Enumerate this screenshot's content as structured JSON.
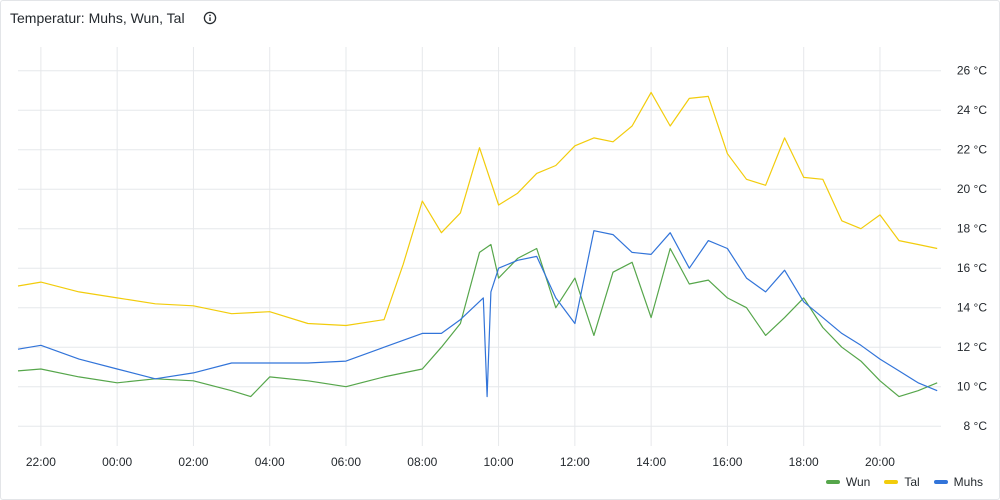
{
  "panel": {
    "title": "Temperatur: Muhs, Wun, Tal",
    "info_icon": "info-circle-icon"
  },
  "chart_data": {
    "type": "line",
    "xlabel": "",
    "ylabel": "",
    "x_tick_labels": [
      "22:00",
      "00:00",
      "02:00",
      "04:00",
      "06:00",
      "08:00",
      "10:00",
      "12:00",
      "14:00",
      "16:00",
      "18:00",
      "20:00"
    ],
    "x_tick_hours": [
      22,
      24,
      26,
      28,
      30,
      32,
      34,
      36,
      38,
      40,
      42,
      44
    ],
    "xlim": [
      21.4,
      45.6
    ],
    "y_tick_labels": [
      "8 °C",
      "10 °C",
      "12 °C",
      "14 °C",
      "16 °C",
      "18 °C",
      "20 °C",
      "22 °C",
      "24 °C",
      "26 °C"
    ],
    "y_tick_values": [
      8,
      10,
      12,
      14,
      16,
      18,
      20,
      22,
      24,
      26
    ],
    "ylim": [
      7,
      27.2
    ],
    "grid": true,
    "legend_position": "bottom-right",
    "series": [
      {
        "name": "Wun",
        "color": "#56a64b",
        "x": [
          21.4,
          22,
          23,
          24,
          25,
          26,
          27,
          27.5,
          28,
          29,
          30,
          31,
          32,
          32.5,
          33,
          33.5,
          33.8,
          34,
          34.5,
          35,
          35.5,
          36,
          36.5,
          37,
          37.5,
          38,
          38.5,
          39,
          39.5,
          40,
          40.5,
          41,
          41.5,
          42,
          42.5,
          43,
          43.5,
          44,
          44.5,
          45,
          45.5
        ],
        "y": [
          10.8,
          10.9,
          10.5,
          10.2,
          10.4,
          10.3,
          9.8,
          9.5,
          10.5,
          10.3,
          10,
          10.5,
          10.9,
          12,
          13.2,
          16.8,
          17.2,
          15.5,
          16.5,
          17,
          14,
          15.5,
          12.6,
          15.8,
          16.3,
          13.5,
          17,
          15.2,
          15.4,
          14.5,
          14,
          12.6,
          13.5,
          14.5,
          13,
          12,
          11.3,
          10.3,
          9.5,
          9.8,
          10.2
        ]
      },
      {
        "name": "Tal",
        "color": "#f2cc0c",
        "x": [
          21.4,
          22,
          23,
          24,
          25,
          26,
          27,
          28,
          29,
          30,
          31,
          31.5,
          32,
          32.5,
          33,
          33.5,
          34,
          34.5,
          35,
          35.5,
          36,
          36.5,
          37,
          37.5,
          38,
          38.5,
          39,
          39.5,
          40,
          40.5,
          41,
          41.5,
          42,
          42.5,
          43,
          43.5,
          44,
          44.5,
          45,
          45.5
        ],
        "y": [
          15.1,
          15.3,
          14.8,
          14.5,
          14.2,
          14.1,
          13.7,
          13.8,
          13.2,
          13.1,
          13.4,
          16.2,
          19.4,
          17.8,
          18.8,
          22.1,
          19.2,
          19.8,
          20.8,
          21.2,
          22.2,
          22.6,
          22.4,
          23.2,
          24.9,
          23.2,
          24.6,
          24.7,
          21.8,
          20.5,
          20.2,
          22.6,
          20.6,
          20.5,
          18.4,
          18,
          18.7,
          17.4,
          17.2,
          17
        ]
      },
      {
        "name": "Muhs",
        "color": "#3274d9",
        "x": [
          21.4,
          22,
          23,
          24,
          25,
          26,
          27,
          28,
          29,
          30,
          31,
          32,
          32.5,
          33,
          33.6,
          33.7,
          33.8,
          34,
          34.5,
          35,
          35.5,
          36,
          36.5,
          37,
          37.5,
          38,
          38.5,
          39,
          39.5,
          40,
          40.5,
          41,
          41.5,
          42,
          42.5,
          43,
          43.5,
          44,
          44.5,
          45,
          45.5
        ],
        "y": [
          11.9,
          12.1,
          11.4,
          10.9,
          10.4,
          10.7,
          11.2,
          11.2,
          11.2,
          11.3,
          12,
          12.7,
          12.7,
          13.4,
          14.5,
          9.5,
          14.8,
          16,
          16.4,
          16.6,
          14.5,
          13.2,
          17.9,
          17.7,
          16.8,
          16.7,
          17.8,
          16,
          17.4,
          17,
          15.5,
          14.8,
          15.9,
          14.3,
          13.5,
          12.7,
          12.1,
          11.4,
          10.8,
          10.2,
          9.8
        ]
      }
    ]
  }
}
